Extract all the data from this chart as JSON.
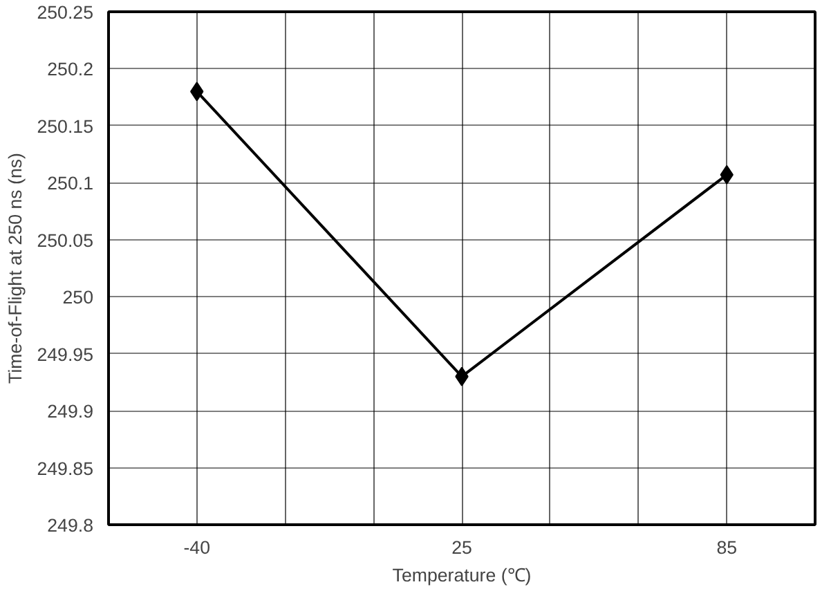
{
  "chart_data": {
    "type": "line",
    "xlabel": "Temperature (℃)",
    "ylabel": "Time-of-Flight at 250 ns (ns)",
    "categories": [
      "-40",
      "25",
      "85"
    ],
    "series": [
      {
        "color": "#000000",
        "values": [
          250.18,
          249.93,
          250.107
        ]
      }
    ],
    "ylim": [
      249.8,
      250.25
    ],
    "yticks": [
      249.8,
      249.85,
      249.9,
      249.95,
      250,
      250.05,
      250.1,
      250.15,
      250.2,
      250.25
    ],
    "grid": true,
    "marker": "diamond",
    "line_style": "solid"
  }
}
